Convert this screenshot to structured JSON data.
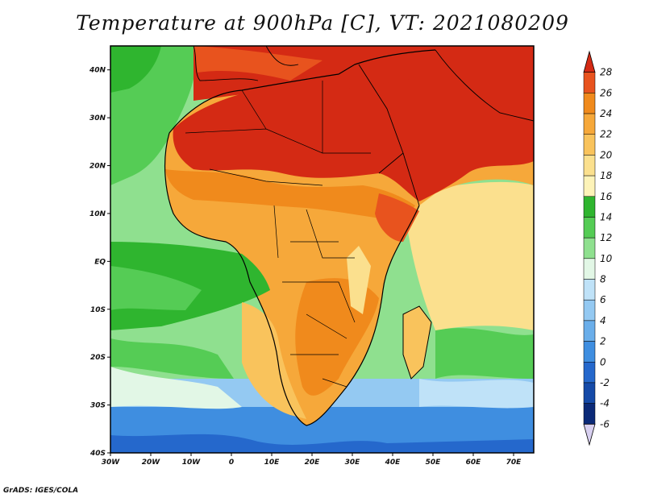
{
  "title": "Temperature at 900hPa [C], VT: 2021080209",
  "credit": "GrADS: IGES/COLA",
  "map": {
    "lon_range": [
      -30,
      75
    ],
    "lat_range": [
      -40,
      45
    ],
    "x_ticks": [
      "30W",
      "20W",
      "10W",
      "0",
      "10E",
      "20E",
      "30E",
      "40E",
      "50E",
      "60E",
      "70E"
    ],
    "y_ticks": [
      "40N",
      "30N",
      "20N",
      "10N",
      "EQ",
      "10S",
      "20S",
      "30S",
      "40S"
    ],
    "field": "temperature",
    "units": "C"
  },
  "colorbar": {
    "labels": [
      "28",
      "26",
      "24",
      "22",
      "20",
      "18",
      "16",
      "14",
      "12",
      "10",
      "8",
      "6",
      "4",
      "2",
      "0",
      "-2",
      "-4",
      "-6"
    ],
    "colors": [
      "#d42a14",
      "#e8531e",
      "#f08a1c",
      "#f6a83a",
      "#f9c35c",
      "#fbe08e",
      "#fdf3b8",
      "#2fb52f",
      "#55cc55",
      "#8fe08f",
      "#e2f7e6",
      "#bfe2f8",
      "#94c9f2",
      "#6aaeea",
      "#3f8ee0",
      "#2568cc",
      "#154aa8",
      "#0b2a78"
    ]
  }
}
